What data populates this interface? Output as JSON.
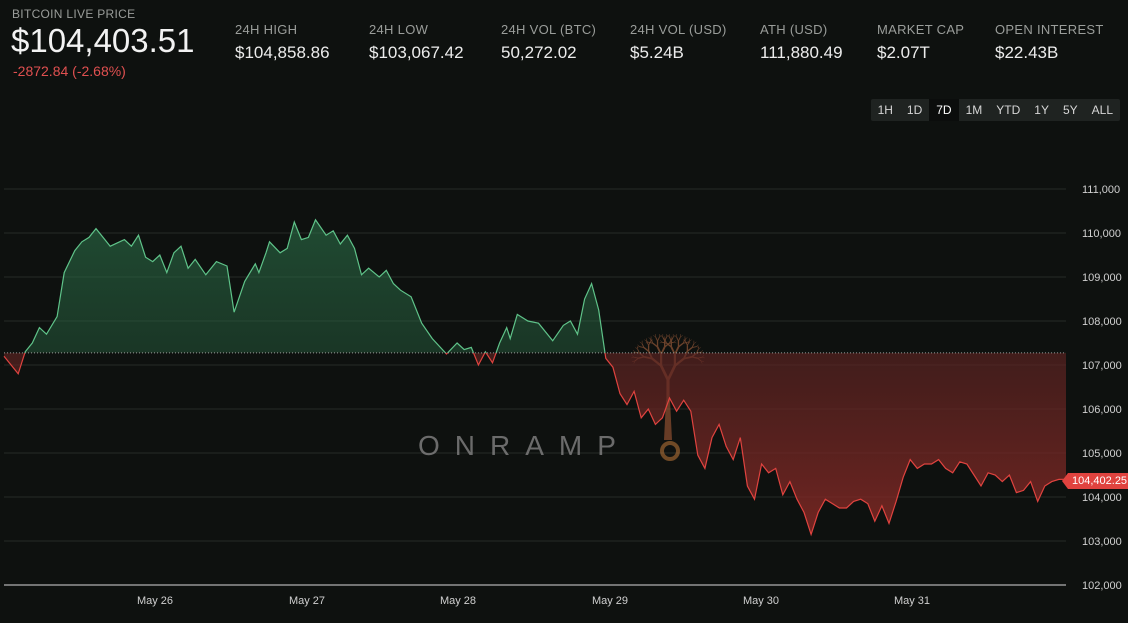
{
  "header": {
    "live_label": "BITCOIN LIVE PRICE",
    "price": "$104,403.51",
    "change": "-2872.84 (-2.68%)",
    "stats": [
      {
        "label": "24H HIGH",
        "value": "$104,858.86"
      },
      {
        "label": "24H LOW",
        "value": "$103,067.42"
      },
      {
        "label": "24H VOL (BTC)",
        "value": "50,272.02"
      },
      {
        "label": "24H VOL (USD)",
        "value": "$5.24B"
      },
      {
        "label": "ATH (USD)",
        "value": "111,880.49"
      },
      {
        "label": "MARKET CAP",
        "value": "$2.07T"
      },
      {
        "label": "OPEN INTEREST",
        "value": "$22.43B"
      }
    ]
  },
  "timeframes": [
    "1H",
    "1D",
    "7D",
    "1M",
    "YTD",
    "1Y",
    "5Y",
    "ALL"
  ],
  "active_timeframe": "7D",
  "watermark": "ONRAMP",
  "colors": {
    "up_line": "#5fc389",
    "down_line": "#e0433f",
    "background": "#0e110f"
  },
  "chart_data": {
    "type": "area",
    "title": "",
    "xlabel": "",
    "ylabel": "",
    "baseline": 107276.35,
    "last_price_label": "104,402.25",
    "ylim": [
      102000,
      111000
    ],
    "y_ticks": [
      "102,000",
      "103,000",
      "104,000",
      "105,000",
      "106,000",
      "107,000",
      "108,000",
      "109,000",
      "110,000",
      "111,000"
    ],
    "x_ticks": [
      "May 26",
      "May 27",
      "May 28",
      "May 29",
      "May 30",
      "May 31"
    ],
    "x": [
      0,
      0.08,
      0.12,
      0.16,
      0.2,
      0.24,
      0.3,
      0.34,
      0.4,
      0.44,
      0.48,
      0.52,
      0.6,
      0.68,
      0.72,
      0.76,
      0.8,
      0.84,
      0.88,
      0.92,
      0.96,
      1.0,
      1.04,
      1.08,
      1.14,
      1.2,
      1.26,
      1.3,
      1.36,
      1.42,
      1.44,
      1.48,
      1.5,
      1.56,
      1.6,
      1.64,
      1.68,
      1.72,
      1.76,
      1.82,
      1.86,
      1.9,
      1.94,
      1.98,
      2.02,
      2.06,
      2.12,
      2.16,
      2.2,
      2.24,
      2.3,
      2.36,
      2.42,
      2.5,
      2.56,
      2.6,
      2.64,
      2.68,
      2.72,
      2.76,
      2.8,
      2.84,
      2.86,
      2.9,
      2.96,
      3.02,
      3.1,
      3.16,
      3.2,
      3.24,
      3.28,
      3.32,
      3.36,
      3.4,
      3.44,
      3.48,
      3.52,
      3.56,
      3.6,
      3.64,
      3.68,
      3.72,
      3.76,
      3.8,
      3.84,
      3.88,
      3.92,
      3.96,
      4.0,
      4.04,
      4.08,
      4.12,
      4.16,
      4.2,
      4.24,
      4.28,
      4.32,
      4.36,
      4.4,
      4.44,
      4.48,
      4.52,
      4.56,
      4.6,
      4.64,
      4.68,
      4.72,
      4.76,
      4.8,
      4.84,
      4.88,
      4.92,
      4.96,
      5.0,
      5.04,
      5.08,
      5.12,
      5.16,
      5.2,
      5.24,
      5.28,
      5.32,
      5.36,
      5.4,
      5.44,
      5.48,
      5.52,
      5.56,
      5.6,
      5.64,
      5.68,
      5.72,
      5.76,
      5.8,
      5.84,
      5.88,
      5.92,
      5.96,
      6.0
    ],
    "y": [
      107200,
      106800,
      107300,
      107500,
      107850,
      107700,
      108100,
      109100,
      109600,
      109800,
      109900,
      110100,
      109700,
      109850,
      109700,
      109950,
      109450,
      109350,
      109500,
      109100,
      109550,
      109700,
      109200,
      109400,
      109050,
      109350,
      109250,
      108200,
      108900,
      109300,
      109100,
      109550,
      109800,
      109550,
      109650,
      110250,
      109850,
      109900,
      110300,
      109950,
      110050,
      109750,
      109950,
      109650,
      109050,
      109200,
      109000,
      109150,
      108850,
      108700,
      108550,
      107950,
      107600,
      107250,
      107500,
      107350,
      107400,
      107000,
      107300,
      107050,
      107500,
      107850,
      107600,
      108150,
      108000,
      107950,
      107550,
      107900,
      108000,
      107700,
      108500,
      108850,
      108250,
      107150,
      106950,
      106350,
      106100,
      106400,
      105800,
      106000,
      105650,
      105800,
      106250,
      105950,
      106200,
      105950,
      104950,
      104650,
      105350,
      105650,
      105150,
      104850,
      105350,
      104250,
      103950,
      104750,
      104550,
      104650,
      104050,
      104350,
      103950,
      103650,
      103150,
      103650,
      103950,
      103850,
      103750,
      103750,
      103900,
      103950,
      103850,
      103450,
      103800,
      103400,
      103900,
      104450,
      104850,
      104650,
      104750,
      104750,
      104850,
      104650,
      104550,
      104800,
      104750,
      104500,
      104250,
      104550,
      104500,
      104350,
      104500,
      104100,
      104150,
      104350,
      103900,
      104250,
      104350,
      104400,
      104402.25
    ]
  }
}
